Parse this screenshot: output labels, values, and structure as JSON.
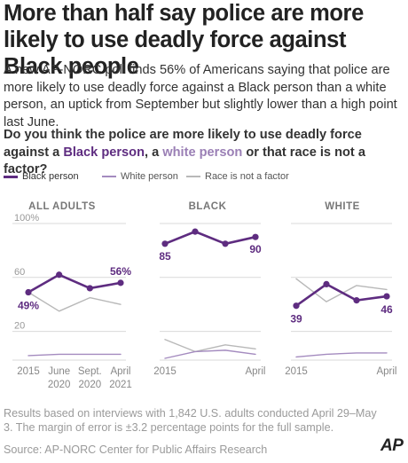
{
  "headline": "More than half say police are more likely to use deadly force against Black people",
  "intro": "A new AP-NORC poll finds 56% of Americans saying that police are more likely to use deadly force against a Black person than a white person, an uptick from September but slightly lower than a high point last June.",
  "question": {
    "part1": "Do you think the police are more likely to use deadly force against a ",
    "black": "Black person",
    "part2": ", a ",
    "white": "white person",
    "part3": " or that race is not a factor?"
  },
  "colors": {
    "black": "#5e2c80",
    "white": "#a48bbf",
    "race": "#b8b8b8",
    "grid": "#d9d9d9"
  },
  "chart_data": [
    {
      "type": "line",
      "title": "ALL ADULTS",
      "x": [
        "2015",
        "June 2020",
        "Sept. 2020",
        "April 2021"
      ],
      "ylim": [
        0,
        100
      ],
      "yticks": [
        "100%",
        "60",
        "20"
      ],
      "xtick_labels": [
        [
          "2015"
        ],
        [
          "June",
          "2020"
        ],
        [
          "Sept.",
          "2020"
        ],
        [
          "April",
          "2021"
        ]
      ],
      "series": [
        {
          "name": "Black person",
          "values": [
            49,
            62,
            52,
            56
          ],
          "labels": {
            "0": "49%",
            "3": "56%"
          }
        },
        {
          "name": "White person",
          "values": [
            2,
            3,
            3,
            3
          ]
        },
        {
          "name": "Race is not a factor",
          "values": [
            49,
            35,
            45,
            40
          ]
        }
      ]
    },
    {
      "type": "line",
      "title": "BLACK",
      "x": [
        "2015",
        "June 2020",
        "Sept. 2020",
        "April 2021"
      ],
      "ylim": [
        0,
        100
      ],
      "xtick_labels": [
        [
          "2015"
        ],
        [],
        [],
        [
          "April"
        ]
      ],
      "series": [
        {
          "name": "Black person",
          "values": [
            85,
            94,
            85,
            90
          ],
          "labels": {
            "0": "85",
            "3": "90"
          }
        },
        {
          "name": "White person",
          "values": [
            0,
            5,
            6,
            3
          ]
        },
        {
          "name": "Race is not a factor",
          "values": [
            14,
            5,
            10,
            7
          ]
        }
      ]
    },
    {
      "type": "line",
      "title": "WHITE",
      "x": [
        "2015",
        "June 2020",
        "Sept. 2020",
        "April 2021"
      ],
      "ylim": [
        0,
        100
      ],
      "xtick_labels": [
        [
          "2015"
        ],
        [],
        [],
        [
          "April"
        ]
      ],
      "series": [
        {
          "name": "Black person",
          "values": [
            39,
            55,
            43,
            46
          ],
          "labels": {
            "0": "39",
            "3": "46"
          }
        },
        {
          "name": "White person",
          "values": [
            1,
            3,
            4,
            4
          ]
        },
        {
          "name": "Race is not a factor",
          "values": [
            59,
            42,
            54,
            51
          ]
        }
      ]
    }
  ],
  "footnote": "Results based on interviews with 1,842 U.S. adults conducted April 29–May 3. The margin of error is ±3.2 percentage points for the full sample.",
  "source": "Source: AP-NORC Center for Public Affairs Research",
  "logo": "AP"
}
